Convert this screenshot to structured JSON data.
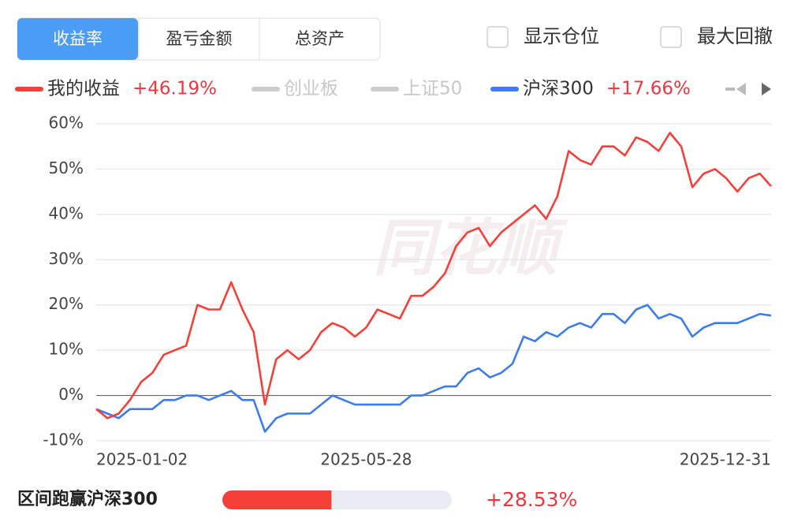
{
  "tabs": [
    "收益率",
    "盈亏金额",
    "总资产"
  ],
  "selected_tab": 0,
  "checkboxes": [
    "显示仓位",
    "最大回撤"
  ],
  "watermark": "同花顺",
  "chart_data": {
    "type": "line",
    "categories": [
      "2025-01-02",
      null,
      null,
      null,
      null,
      null,
      null,
      null,
      null,
      null,
      null,
      null,
      null,
      null,
      null,
      null,
      null,
      null,
      null,
      null,
      null,
      null,
      null,
      null,
      "2025-05-28",
      null,
      null,
      null,
      null,
      null,
      null,
      null,
      null,
      null,
      null,
      null,
      null,
      null,
      null,
      null,
      null,
      null,
      null,
      null,
      null,
      null,
      null,
      null,
      null,
      null,
      null,
      null,
      null,
      null,
      null,
      null,
      null,
      null,
      null,
      null,
      "2025-12-31"
    ],
    "series": [
      {
        "name": "我的收益",
        "color": "#f5403a",
        "summary": {
          "value": 46.19,
          "label": "+46.19%"
        },
        "values": [
          -3,
          -5,
          -4,
          -1,
          3,
          5,
          9,
          10,
          11,
          20,
          19,
          19,
          25,
          19,
          14,
          -2,
          8,
          10,
          8,
          10,
          14,
          16,
          15,
          13,
          15,
          19,
          18,
          17,
          22,
          22,
          24,
          27,
          33,
          36,
          37,
          33,
          36,
          38,
          40,
          42,
          39,
          44,
          54,
          52,
          51,
          55,
          55,
          53,
          57,
          56,
          54,
          58,
          55,
          46,
          49,
          50,
          48,
          45,
          48,
          49,
          46.19
        ]
      },
      {
        "name": "创业板",
        "color": "#cccccc",
        "visible": false
      },
      {
        "name": "上证50",
        "color": "#cccccc",
        "visible": false
      },
      {
        "name": "沪深300",
        "color": "#3c7bf0",
        "summary": {
          "value": 17.66,
          "label": "+17.66%"
        },
        "values": [
          -3,
          -4,
          -5,
          -3,
          -3,
          -3,
          -1,
          -1,
          0,
          0,
          -1,
          0,
          1,
          -1,
          -1,
          -8,
          -5,
          -4,
          -4,
          -4,
          -2,
          0,
          -1,
          -2,
          -2,
          -2,
          -2,
          -2,
          0,
          0,
          1,
          2,
          2,
          5,
          6,
          4,
          5,
          7,
          13,
          12,
          14,
          13,
          15,
          16,
          15,
          18,
          18,
          16,
          19,
          20,
          17,
          18,
          17,
          13,
          15,
          16,
          16,
          16,
          17,
          18,
          17.66
        ]
      }
    ],
    "ylim": [
      -10,
      60
    ],
    "yticks": [
      {
        "value": -10,
        "label": "-10%"
      },
      {
        "value": 0,
        "label": "0%"
      },
      {
        "value": 10,
        "label": "10%"
      },
      {
        "value": 20,
        "label": "20%"
      },
      {
        "value": 30,
        "label": "30%"
      },
      {
        "value": 40,
        "label": "40%"
      },
      {
        "value": 50,
        "label": "50%"
      },
      {
        "value": 60,
        "label": "60%"
      }
    ],
    "grid": true
  },
  "outperform": {
    "label": "区间跑赢沪深300",
    "value": 28.53,
    "value_label": "+28.53%"
  }
}
